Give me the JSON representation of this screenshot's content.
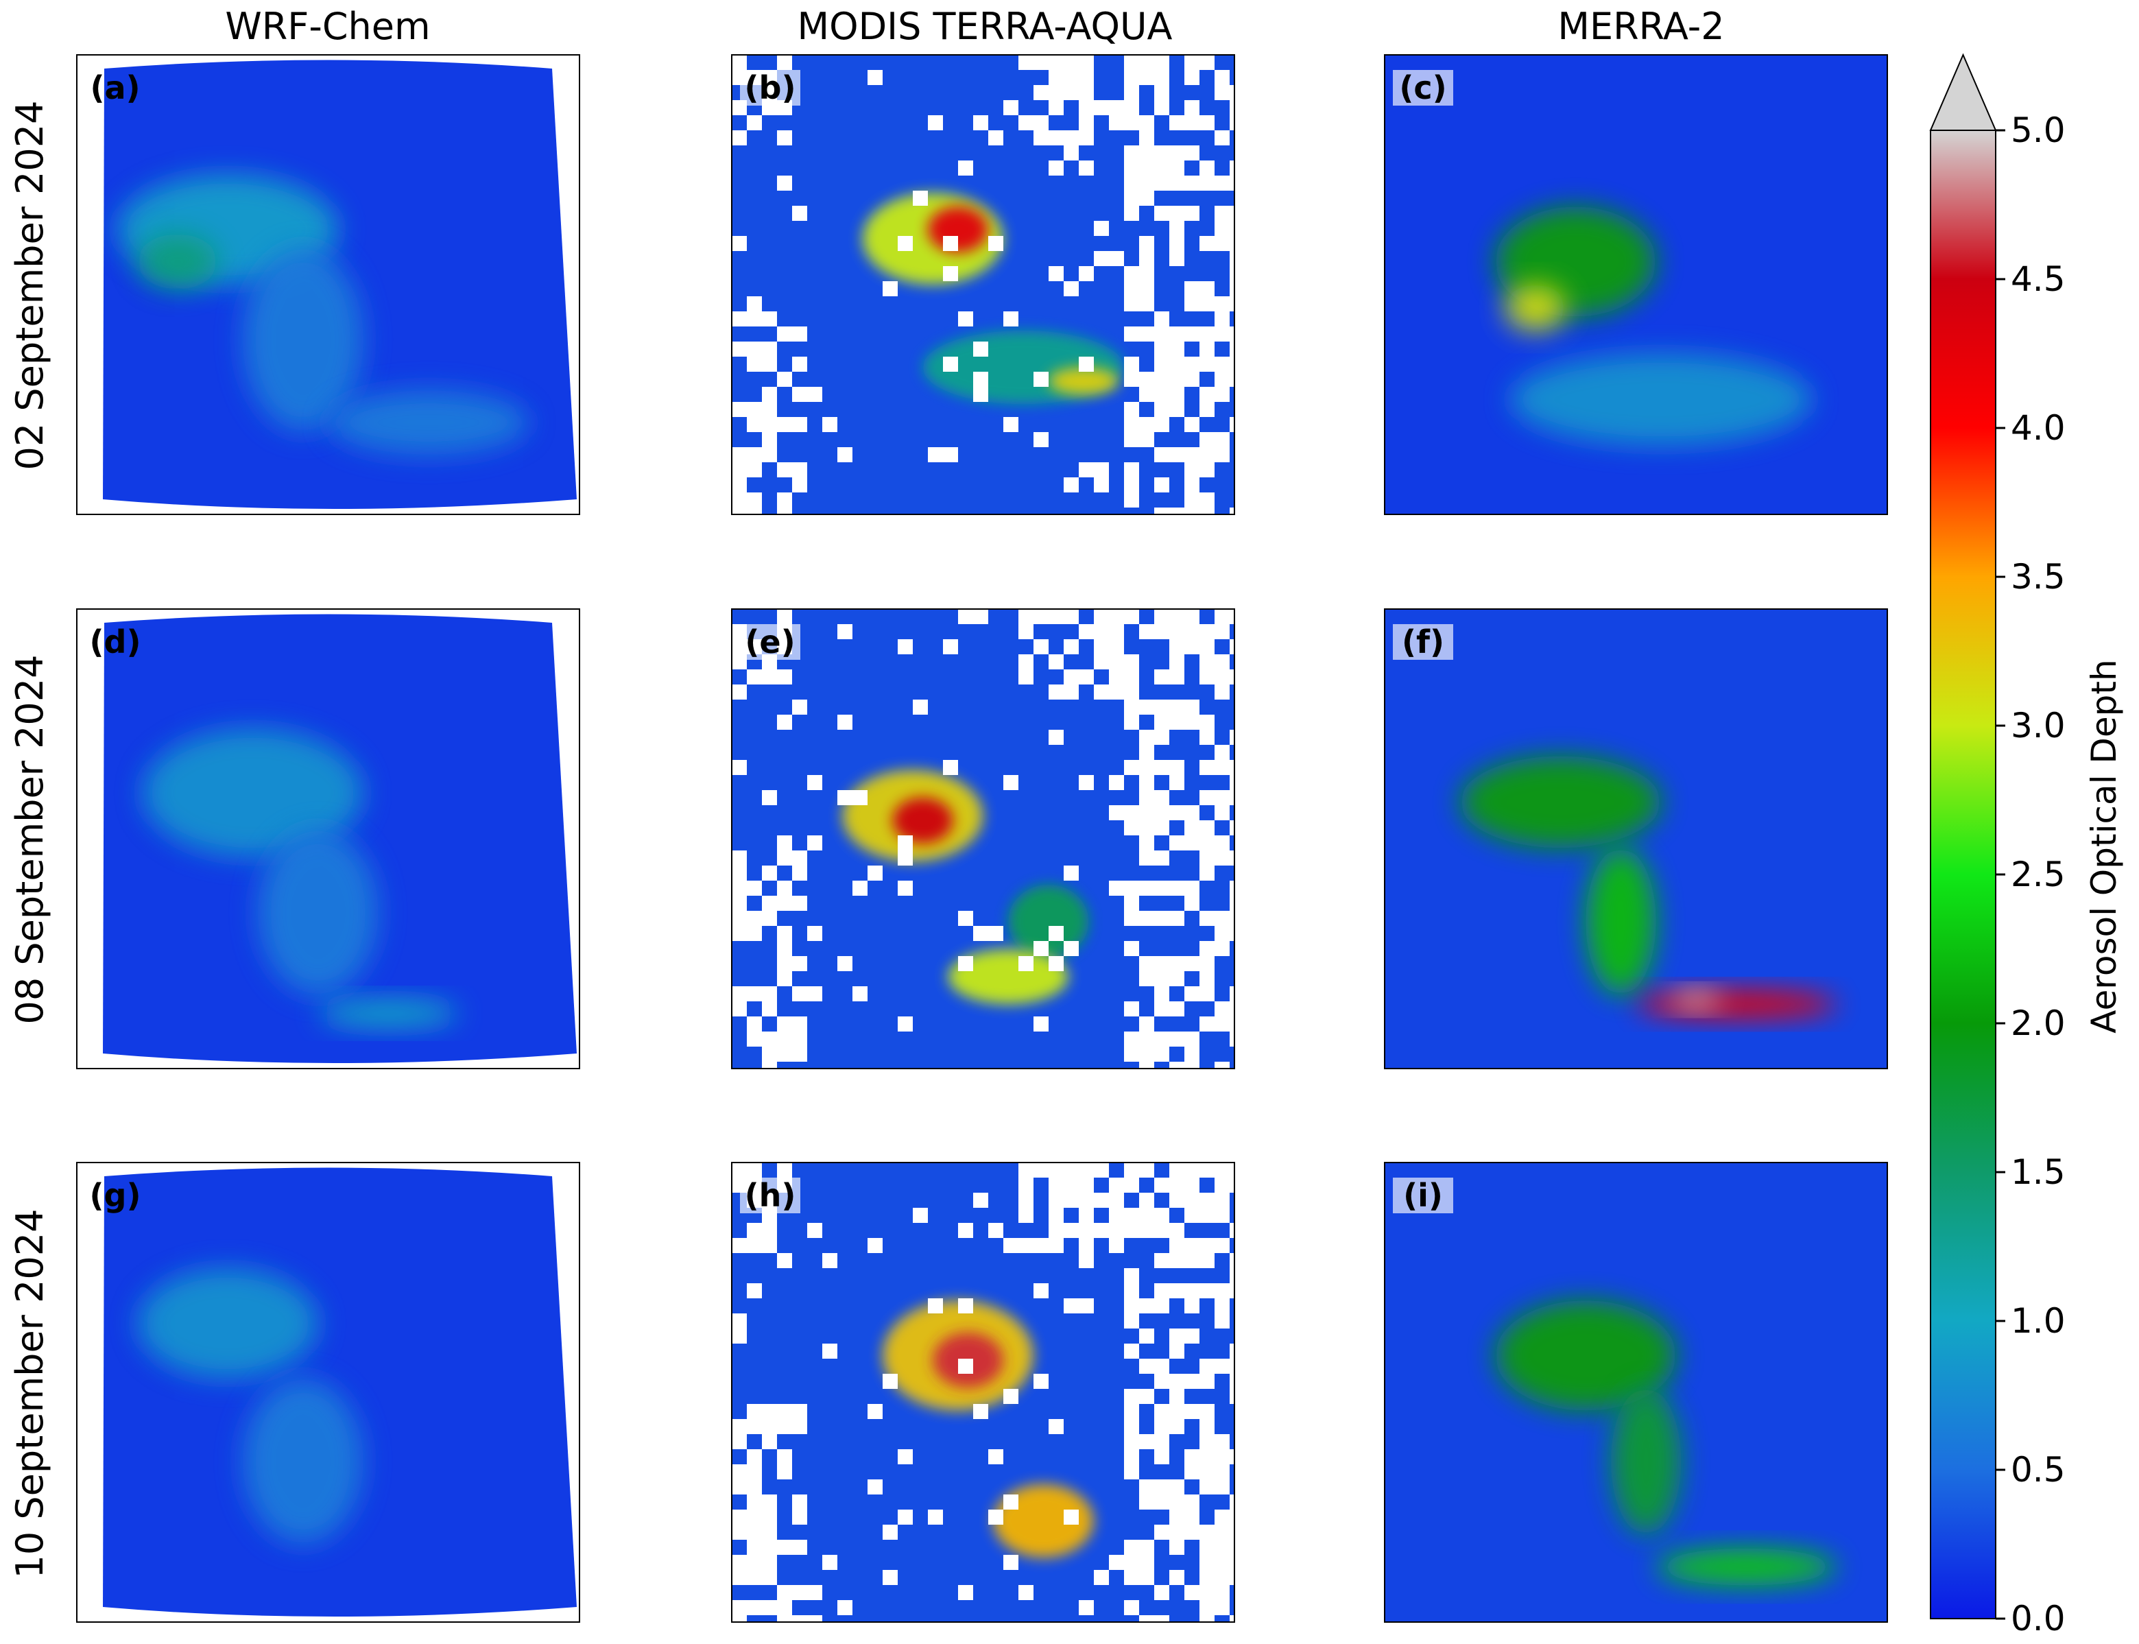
{
  "figure": {
    "columns": [
      "WRF-Chem",
      "MODIS TERRA-AQUA",
      "MERRA-2"
    ],
    "rows": [
      "02 September 2024",
      "08 September 2024",
      "10 September 2024"
    ],
    "panel_labels": [
      "(a)",
      "(b)",
      "(c)",
      "(d)",
      "(e)",
      "(f)",
      "(g)",
      "(h)",
      "(i)"
    ]
  },
  "colorbar": {
    "label": "Aerosol Optical Depth",
    "ticks": [
      "0.0",
      "0.5",
      "1.0",
      "1.5",
      "2.0",
      "2.5",
      "3.0",
      "3.5",
      "4.0",
      "4.5",
      "5.0"
    ],
    "range": [
      0.0,
      5.0
    ],
    "extend": "max",
    "colors": [
      "#0a19e6",
      "#1c6fe0",
      "#12a8c4",
      "#0f9b6a",
      "#079a09",
      "#10e816",
      "#c8ea12",
      "#ffa500",
      "#ff0000",
      "#cc0010",
      "#d4d4d4"
    ]
  },
  "chart_data": {
    "type": "heatmap",
    "variable": "Aerosol Optical Depth",
    "vmin": 0.0,
    "vmax": 5.0,
    "panels": [
      {
        "label": "(a)",
        "source": "WRF-Chem",
        "date": "02 September 2024",
        "background": 0.2,
        "plumes": [
          {
            "x": 0.3,
            "y": 0.38,
            "rx": 0.22,
            "ry": 0.12,
            "value": 0.9
          },
          {
            "x": 0.2,
            "y": 0.45,
            "rx": 0.08,
            "ry": 0.06,
            "value": 1.4
          },
          {
            "x": 0.45,
            "y": 0.62,
            "rx": 0.12,
            "ry": 0.2,
            "value": 0.6
          },
          {
            "x": 0.7,
            "y": 0.8,
            "rx": 0.2,
            "ry": 0.07,
            "value": 0.6
          }
        ]
      },
      {
        "label": "(b)",
        "source": "MODIS TERRA-AQUA",
        "date": "02 September 2024",
        "background": 0.3,
        "plumes": [
          {
            "x": 0.4,
            "y": 0.4,
            "rx": 0.14,
            "ry": 0.1,
            "value": 3.0
          },
          {
            "x": 0.45,
            "y": 0.38,
            "rx": 0.06,
            "ry": 0.05,
            "value": 4.3
          },
          {
            "x": 0.58,
            "y": 0.68,
            "rx": 0.2,
            "ry": 0.08,
            "value": 1.3
          },
          {
            "x": 0.7,
            "y": 0.71,
            "rx": 0.07,
            "ry": 0.03,
            "value": 3.2
          }
        ]
      },
      {
        "label": "(c)",
        "source": "MERRA-2",
        "date": "02 September 2024",
        "background": 0.2,
        "plumes": [
          {
            "x": 0.38,
            "y": 0.45,
            "rx": 0.16,
            "ry": 0.12,
            "value": 2.0
          },
          {
            "x": 0.3,
            "y": 0.55,
            "rx": 0.06,
            "ry": 0.05,
            "value": 3.1
          },
          {
            "x": 0.55,
            "y": 0.75,
            "rx": 0.3,
            "ry": 0.1,
            "value": 0.8
          }
        ]
      },
      {
        "label": "(d)",
        "source": "WRF-Chem",
        "date": "08 September 2024",
        "background": 0.2,
        "plumes": [
          {
            "x": 0.35,
            "y": 0.4,
            "rx": 0.22,
            "ry": 0.14,
            "value": 0.8
          },
          {
            "x": 0.48,
            "y": 0.66,
            "rx": 0.12,
            "ry": 0.18,
            "value": 0.6
          },
          {
            "x": 0.62,
            "y": 0.88,
            "rx": 0.14,
            "ry": 0.03,
            "value": 1.0
          }
        ]
      },
      {
        "label": "(e)",
        "source": "MODIS TERRA-AQUA",
        "date": "08 September 2024",
        "background": 0.3,
        "plumes": [
          {
            "x": 0.36,
            "y": 0.45,
            "rx": 0.14,
            "ry": 0.1,
            "value": 3.2
          },
          {
            "x": 0.38,
            "y": 0.46,
            "rx": 0.06,
            "ry": 0.05,
            "value": 4.5
          },
          {
            "x": 0.63,
            "y": 0.68,
            "rx": 0.08,
            "ry": 0.08,
            "value": 1.6
          },
          {
            "x": 0.55,
            "y": 0.8,
            "rx": 0.12,
            "ry": 0.06,
            "value": 3.0
          }
        ]
      },
      {
        "label": "(f)",
        "source": "MERRA-2",
        "date": "08 September 2024",
        "background": 0.25,
        "plumes": [
          {
            "x": 0.35,
            "y": 0.42,
            "rx": 0.2,
            "ry": 0.1,
            "value": 2.0
          },
          {
            "x": 0.47,
            "y": 0.68,
            "rx": 0.07,
            "ry": 0.16,
            "value": 2.2
          },
          {
            "x": 0.7,
            "y": 0.86,
            "rx": 0.2,
            "ry": 0.03,
            "value": 4.2
          },
          {
            "x": 0.62,
            "y": 0.85,
            "rx": 0.05,
            "ry": 0.02,
            "value": 4.9
          }
        ]
      },
      {
        "label": "(g)",
        "source": "WRF-Chem",
        "date": "10 September 2024",
        "background": 0.2,
        "plumes": [
          {
            "x": 0.3,
            "y": 0.35,
            "rx": 0.18,
            "ry": 0.12,
            "value": 0.8
          },
          {
            "x": 0.45,
            "y": 0.65,
            "rx": 0.12,
            "ry": 0.18,
            "value": 0.6
          }
        ]
      },
      {
        "label": "(h)",
        "source": "MODIS TERRA-AQUA",
        "date": "10 September 2024",
        "background": 0.3,
        "plumes": [
          {
            "x": 0.45,
            "y": 0.42,
            "rx": 0.15,
            "ry": 0.12,
            "value": 3.3
          },
          {
            "x": 0.47,
            "y": 0.43,
            "rx": 0.07,
            "ry": 0.06,
            "value": 4.6
          },
          {
            "x": 0.62,
            "y": 0.78,
            "rx": 0.1,
            "ry": 0.08,
            "value": 3.4
          }
        ]
      },
      {
        "label": "(i)",
        "source": "MERRA-2",
        "date": "10 September 2024",
        "background": 0.25,
        "plumes": [
          {
            "x": 0.4,
            "y": 0.42,
            "rx": 0.18,
            "ry": 0.12,
            "value": 2.0
          },
          {
            "x": 0.52,
            "y": 0.65,
            "rx": 0.07,
            "ry": 0.16,
            "value": 1.8
          },
          {
            "x": 0.72,
            "y": 0.88,
            "rx": 0.18,
            "ry": 0.04,
            "value": 2.3
          }
        ]
      }
    ]
  }
}
